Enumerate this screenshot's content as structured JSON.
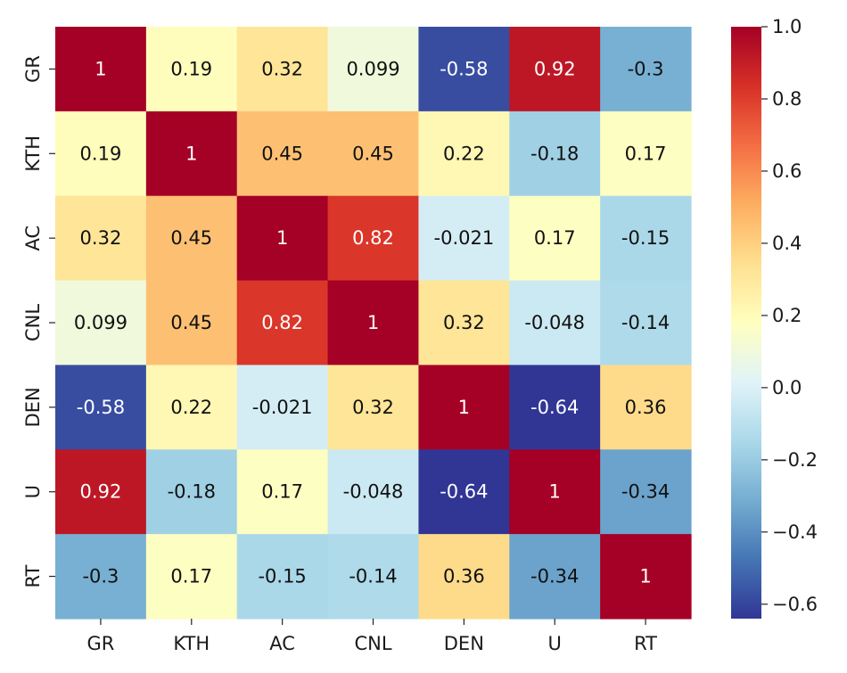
{
  "chart_data": {
    "type": "heatmap",
    "title": "",
    "xlabel": "",
    "ylabel": "",
    "x_labels": [
      "GR",
      "KTH",
      "AC",
      "CNL",
      "DEN",
      "U",
      "RT"
    ],
    "y_labels": [
      "GR",
      "KTH",
      "AC",
      "CNL",
      "DEN",
      "U",
      "RT"
    ],
    "values": [
      [
        1,
        0.19,
        0.32,
        0.099,
        -0.58,
        0.92,
        -0.3
      ],
      [
        0.19,
        1,
        0.45,
        0.45,
        0.22,
        -0.18,
        0.17
      ],
      [
        0.32,
        0.45,
        1,
        0.82,
        -0.021,
        0.17,
        -0.15
      ],
      [
        0.099,
        0.45,
        0.82,
        1,
        0.32,
        -0.048,
        -0.14
      ],
      [
        -0.58,
        0.22,
        -0.021,
        0.32,
        1,
        -0.64,
        0.36
      ],
      [
        0.92,
        -0.18,
        0.17,
        -0.048,
        -0.64,
        1,
        -0.34
      ],
      [
        -0.3,
        0.17,
        -0.15,
        -0.14,
        0.36,
        -0.34,
        1
      ]
    ],
    "annotations": [
      [
        "1",
        "0.19",
        "0.32",
        "0.099",
        "-0.58",
        "0.92",
        "-0.3"
      ],
      [
        "0.19",
        "1",
        "0.45",
        "0.45",
        "0.22",
        "-0.18",
        "0.17"
      ],
      [
        "0.32",
        "0.45",
        "1",
        "0.82",
        "-0.021",
        "0.17",
        "-0.15"
      ],
      [
        "0.099",
        "0.45",
        "0.82",
        "1",
        "0.32",
        "-0.048",
        "-0.14"
      ],
      [
        "-0.58",
        "0.22",
        "-0.021",
        "0.32",
        "1",
        "-0.64",
        "0.36"
      ],
      [
        "0.92",
        "-0.18",
        "0.17",
        "-0.048",
        "-0.64",
        "1",
        "-0.34"
      ],
      [
        "-0.3",
        "0.17",
        "-0.15",
        "-0.14",
        "0.36",
        "-0.34",
        "1"
      ]
    ],
    "colormap": "RdYlBu_r",
    "vmin": -0.64,
    "vmax": 1.0,
    "colorbar": {
      "ticks": [
        1.0,
        0.8,
        0.6,
        0.4,
        0.2,
        0.0,
        -0.2,
        -0.4,
        -0.6
      ],
      "tick_labels": [
        "1.0",
        "0.8",
        "0.6",
        "0.4",
        "0.2",
        "0.0",
        "−0.2",
        "−0.4",
        "−0.6"
      ],
      "placement": "right"
    },
    "grid": false
  }
}
